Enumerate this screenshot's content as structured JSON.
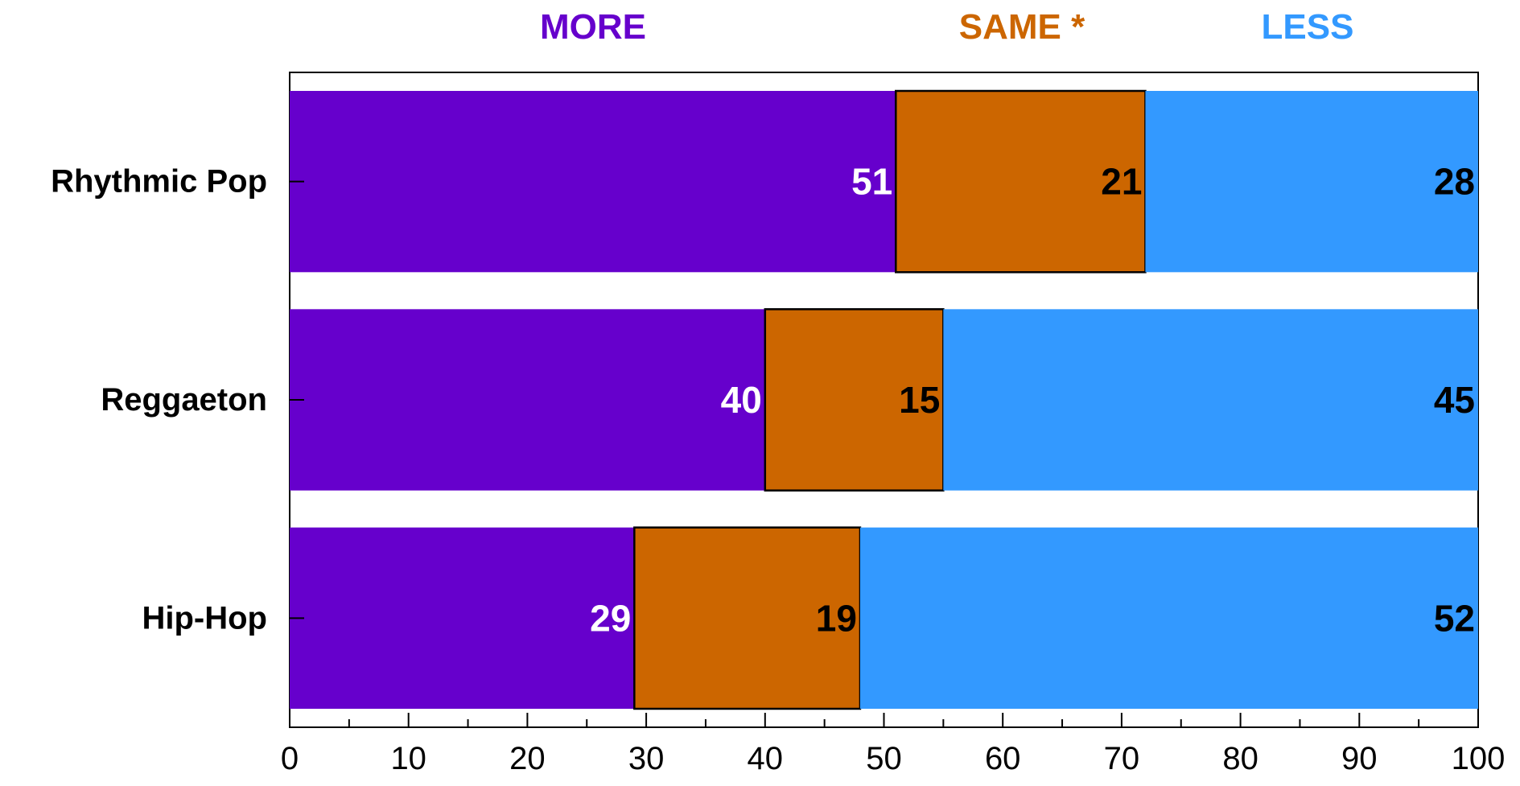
{
  "chart_data": {
    "type": "bar",
    "orientation": "horizontal",
    "stacked": true,
    "categories": [
      "Rhythmic Pop",
      "Reggaeton",
      "Hip-Hop"
    ],
    "series": [
      {
        "name": "MORE",
        "values": [
          51,
          40,
          29
        ],
        "color": "#6600cc",
        "label_color": "#ffffff"
      },
      {
        "name": "SAME *",
        "values": [
          21,
          15,
          19
        ],
        "color": "#cc6600",
        "label_color": "#000000"
      },
      {
        "name": "LESS",
        "values": [
          28,
          45,
          52
        ],
        "color": "#3399ff",
        "label_color": "#000000"
      }
    ],
    "x_ticks": [
      "0",
      "10",
      "20",
      "30",
      "40",
      "50",
      "60",
      "70",
      "80",
      "90",
      "100"
    ],
    "xlim": [
      0,
      100
    ],
    "minor_tick_step": 5,
    "legend_position": "top",
    "grid": false,
    "title": "",
    "xlabel": "",
    "ylabel": ""
  }
}
